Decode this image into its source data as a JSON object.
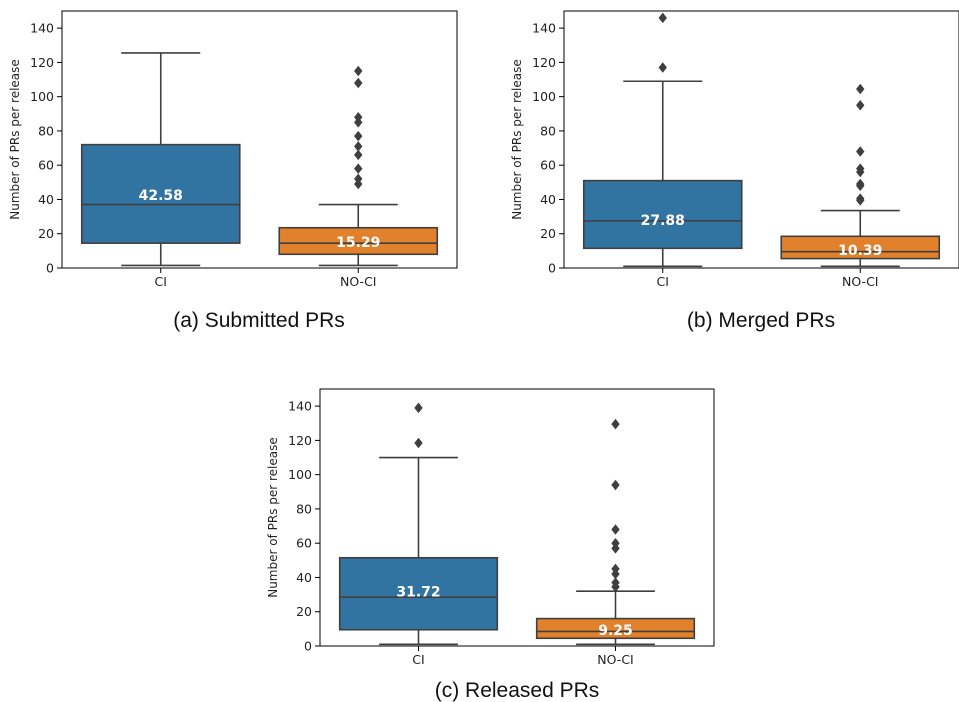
{
  "colors": {
    "CI": "#3274a1",
    "NO-CI": "#e1812c",
    "line": "#3f3f3f"
  },
  "chart_data": [
    {
      "type": "box",
      "caption": "(a) Submitted PRs",
      "ylabel": "Number of PRs per release",
      "ylim": [
        0,
        150
      ],
      "yticks": [
        0,
        20,
        40,
        60,
        80,
        100,
        120,
        140
      ],
      "yticklabels": [
        "0",
        "20",
        "40",
        "60",
        "80",
        "100",
        "120",
        "140"
      ],
      "categories": [
        "CI",
        "NO-CI"
      ],
      "series": [
        {
          "category": "CI",
          "whisker_low": 1.5,
          "q1": 14.5,
          "median": 37,
          "q3": 72,
          "whisker_high": 125.5,
          "mean_label": "42.58",
          "mean": 42.58,
          "outliers": []
        },
        {
          "category": "NO-CI",
          "whisker_low": 1.5,
          "q1": 8,
          "median": 14.5,
          "q3": 23.5,
          "whisker_high": 37,
          "mean_label": "15.29",
          "mean": 15.29,
          "outliers": [
            49,
            52,
            58,
            66,
            71,
            77,
            85,
            88,
            108,
            115
          ]
        }
      ]
    },
    {
      "type": "box",
      "caption": "(b) Merged PRs",
      "ylabel": "Number of PRs per release",
      "ylim": [
        0,
        150
      ],
      "yticks": [
        0,
        20,
        40,
        60,
        80,
        100,
        120,
        140
      ],
      "yticklabels": [
        "0",
        "20",
        "40",
        "60",
        "80",
        "100",
        "120",
        "140"
      ],
      "categories": [
        "CI",
        "NO-CI"
      ],
      "series": [
        {
          "category": "CI",
          "whisker_low": 1,
          "q1": 11.5,
          "median": 27.5,
          "q3": 51,
          "whisker_high": 109,
          "mean_label": "27.88",
          "mean": 27.88,
          "outliers": [
            117,
            146
          ]
        },
        {
          "category": "NO-CI",
          "whisker_low": 1,
          "q1": 5.5,
          "median": 9.5,
          "q3": 18.5,
          "whisker_high": 33.5,
          "mean_label": "10.39",
          "mean": 10.39,
          "outliers": [
            39.5,
            40.5,
            48,
            49,
            56,
            58,
            68,
            95,
            104.5
          ]
        }
      ]
    },
    {
      "type": "box",
      "caption": "(c) Released PRs",
      "ylabel": "Number of PRs per release",
      "ylim": [
        0,
        150
      ],
      "yticks": [
        0,
        20,
        40,
        60,
        80,
        100,
        120,
        140
      ],
      "yticklabels": [
        "0",
        "20",
        "40",
        "60",
        "80",
        "100",
        "120",
        "140"
      ],
      "categories": [
        "CI",
        "NO-CI"
      ],
      "series": [
        {
          "category": "CI",
          "whisker_low": 1,
          "q1": 9.5,
          "median": 28.5,
          "q3": 51.5,
          "whisker_high": 110,
          "mean_label": "31.72",
          "mean": 31.72,
          "outliers": [
            118.5,
            139
          ]
        },
        {
          "category": "NO-CI",
          "whisker_low": 1,
          "q1": 4.5,
          "median": 8.5,
          "q3": 16,
          "whisker_high": 32,
          "mean_label": "9.25",
          "mean": 9.25,
          "outliers": [
            34.5,
            37,
            42,
            45,
            57,
            60,
            68,
            94,
            129.5
          ]
        }
      ]
    }
  ]
}
